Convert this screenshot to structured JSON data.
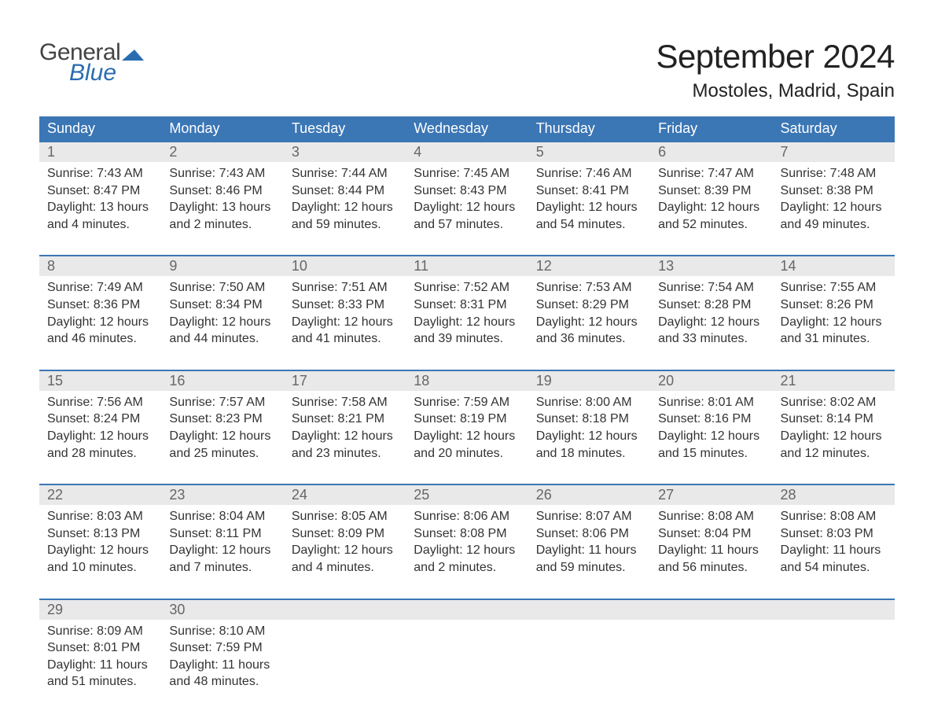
{
  "brand": {
    "word1": "General",
    "word2": "Blue",
    "mark_color": "#2a6cb0",
    "text_gray": "#444444"
  },
  "title": "September 2024",
  "location": "Mostoles, Madrid, Spain",
  "colors": {
    "header_bg": "#3b76b5",
    "header_text": "#ffffff",
    "row_accent": "#3b76b5",
    "daynum_bg": "#e9e9e9",
    "daynum_text": "#666666",
    "body_text": "#333333",
    "page_bg": "#ffffff"
  },
  "typography": {
    "title_fontsize": 42,
    "location_fontsize": 24,
    "header_fontsize": 18,
    "daynum_fontsize": 18,
    "body_fontsize": 16
  },
  "weekdays": [
    "Sunday",
    "Monday",
    "Tuesday",
    "Wednesday",
    "Thursday",
    "Friday",
    "Saturday"
  ],
  "weeks": [
    [
      {
        "n": "1",
        "sunrise": "Sunrise: 7:43 AM",
        "sunset": "Sunset: 8:47 PM",
        "day1": "Daylight: 13 hours",
        "day2": "and 4 minutes."
      },
      {
        "n": "2",
        "sunrise": "Sunrise: 7:43 AM",
        "sunset": "Sunset: 8:46 PM",
        "day1": "Daylight: 13 hours",
        "day2": "and 2 minutes."
      },
      {
        "n": "3",
        "sunrise": "Sunrise: 7:44 AM",
        "sunset": "Sunset: 8:44 PM",
        "day1": "Daylight: 12 hours",
        "day2": "and 59 minutes."
      },
      {
        "n": "4",
        "sunrise": "Sunrise: 7:45 AM",
        "sunset": "Sunset: 8:43 PM",
        "day1": "Daylight: 12 hours",
        "day2": "and 57 minutes."
      },
      {
        "n": "5",
        "sunrise": "Sunrise: 7:46 AM",
        "sunset": "Sunset: 8:41 PM",
        "day1": "Daylight: 12 hours",
        "day2": "and 54 minutes."
      },
      {
        "n": "6",
        "sunrise": "Sunrise: 7:47 AM",
        "sunset": "Sunset: 8:39 PM",
        "day1": "Daylight: 12 hours",
        "day2": "and 52 minutes."
      },
      {
        "n": "7",
        "sunrise": "Sunrise: 7:48 AM",
        "sunset": "Sunset: 8:38 PM",
        "day1": "Daylight: 12 hours",
        "day2": "and 49 minutes."
      }
    ],
    [
      {
        "n": "8",
        "sunrise": "Sunrise: 7:49 AM",
        "sunset": "Sunset: 8:36 PM",
        "day1": "Daylight: 12 hours",
        "day2": "and 46 minutes."
      },
      {
        "n": "9",
        "sunrise": "Sunrise: 7:50 AM",
        "sunset": "Sunset: 8:34 PM",
        "day1": "Daylight: 12 hours",
        "day2": "and 44 minutes."
      },
      {
        "n": "10",
        "sunrise": "Sunrise: 7:51 AM",
        "sunset": "Sunset: 8:33 PM",
        "day1": "Daylight: 12 hours",
        "day2": "and 41 minutes."
      },
      {
        "n": "11",
        "sunrise": "Sunrise: 7:52 AM",
        "sunset": "Sunset: 8:31 PM",
        "day1": "Daylight: 12 hours",
        "day2": "and 39 minutes."
      },
      {
        "n": "12",
        "sunrise": "Sunrise: 7:53 AM",
        "sunset": "Sunset: 8:29 PM",
        "day1": "Daylight: 12 hours",
        "day2": "and 36 minutes."
      },
      {
        "n": "13",
        "sunrise": "Sunrise: 7:54 AM",
        "sunset": "Sunset: 8:28 PM",
        "day1": "Daylight: 12 hours",
        "day2": "and 33 minutes."
      },
      {
        "n": "14",
        "sunrise": "Sunrise: 7:55 AM",
        "sunset": "Sunset: 8:26 PM",
        "day1": "Daylight: 12 hours",
        "day2": "and 31 minutes."
      }
    ],
    [
      {
        "n": "15",
        "sunrise": "Sunrise: 7:56 AM",
        "sunset": "Sunset: 8:24 PM",
        "day1": "Daylight: 12 hours",
        "day2": "and 28 minutes."
      },
      {
        "n": "16",
        "sunrise": "Sunrise: 7:57 AM",
        "sunset": "Sunset: 8:23 PM",
        "day1": "Daylight: 12 hours",
        "day2": "and 25 minutes."
      },
      {
        "n": "17",
        "sunrise": "Sunrise: 7:58 AM",
        "sunset": "Sunset: 8:21 PM",
        "day1": "Daylight: 12 hours",
        "day2": "and 23 minutes."
      },
      {
        "n": "18",
        "sunrise": "Sunrise: 7:59 AM",
        "sunset": "Sunset: 8:19 PM",
        "day1": "Daylight: 12 hours",
        "day2": "and 20 minutes."
      },
      {
        "n": "19",
        "sunrise": "Sunrise: 8:00 AM",
        "sunset": "Sunset: 8:18 PM",
        "day1": "Daylight: 12 hours",
        "day2": "and 18 minutes."
      },
      {
        "n": "20",
        "sunrise": "Sunrise: 8:01 AM",
        "sunset": "Sunset: 8:16 PM",
        "day1": "Daylight: 12 hours",
        "day2": "and 15 minutes."
      },
      {
        "n": "21",
        "sunrise": "Sunrise: 8:02 AM",
        "sunset": "Sunset: 8:14 PM",
        "day1": "Daylight: 12 hours",
        "day2": "and 12 minutes."
      }
    ],
    [
      {
        "n": "22",
        "sunrise": "Sunrise: 8:03 AM",
        "sunset": "Sunset: 8:13 PM",
        "day1": "Daylight: 12 hours",
        "day2": "and 10 minutes."
      },
      {
        "n": "23",
        "sunrise": "Sunrise: 8:04 AM",
        "sunset": "Sunset: 8:11 PM",
        "day1": "Daylight: 12 hours",
        "day2": "and 7 minutes."
      },
      {
        "n": "24",
        "sunrise": "Sunrise: 8:05 AM",
        "sunset": "Sunset: 8:09 PM",
        "day1": "Daylight: 12 hours",
        "day2": "and 4 minutes."
      },
      {
        "n": "25",
        "sunrise": "Sunrise: 8:06 AM",
        "sunset": "Sunset: 8:08 PM",
        "day1": "Daylight: 12 hours",
        "day2": "and 2 minutes."
      },
      {
        "n": "26",
        "sunrise": "Sunrise: 8:07 AM",
        "sunset": "Sunset: 8:06 PM",
        "day1": "Daylight: 11 hours",
        "day2": "and 59 minutes."
      },
      {
        "n": "27",
        "sunrise": "Sunrise: 8:08 AM",
        "sunset": "Sunset: 8:04 PM",
        "day1": "Daylight: 11 hours",
        "day2": "and 56 minutes."
      },
      {
        "n": "28",
        "sunrise": "Sunrise: 8:08 AM",
        "sunset": "Sunset: 8:03 PM",
        "day1": "Daylight: 11 hours",
        "day2": "and 54 minutes."
      }
    ],
    [
      {
        "n": "29",
        "sunrise": "Sunrise: 8:09 AM",
        "sunset": "Sunset: 8:01 PM",
        "day1": "Daylight: 11 hours",
        "day2": "and 51 minutes."
      },
      {
        "n": "30",
        "sunrise": "Sunrise: 8:10 AM",
        "sunset": "Sunset: 7:59 PM",
        "day1": "Daylight: 11 hours",
        "day2": "and 48 minutes."
      },
      null,
      null,
      null,
      null,
      null
    ]
  ]
}
